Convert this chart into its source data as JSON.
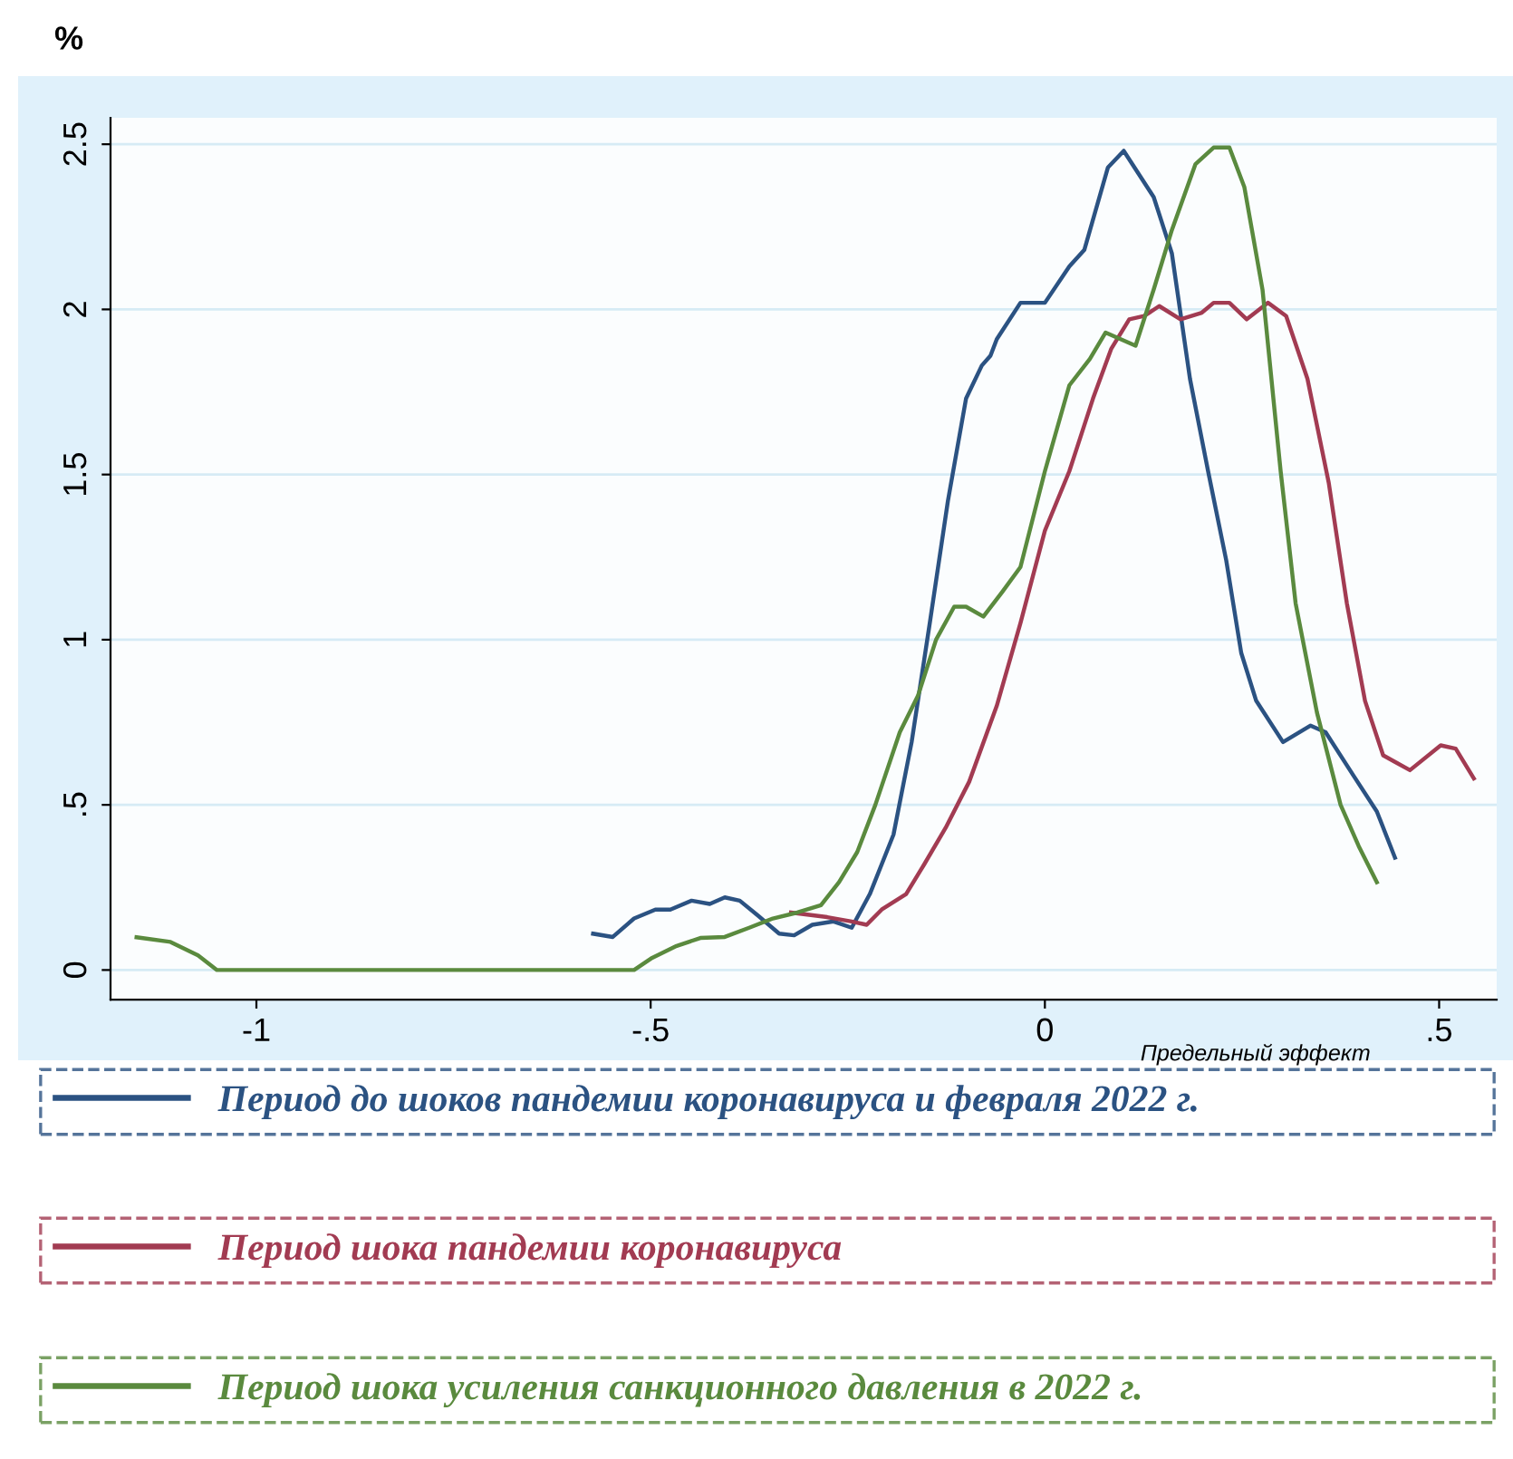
{
  "chart_data": {
    "type": "line",
    "xlabel": "Предельный эффект",
    "ylabel": "%",
    "xlim": [
      -1.185,
      0.573
    ],
    "ylim": [
      -0.09,
      2.58
    ],
    "xticks": [
      -1,
      {
        "value": -0.5,
        "label": "-.5"
      },
      0,
      {
        "value": 0.5,
        "label": ".5"
      }
    ],
    "yticks": [
      0,
      {
        "value": 0.5,
        "label": ".5"
      },
      1,
      1.5,
      2,
      2.5
    ],
    "grid": "y",
    "legend": "bottom",
    "line_style": "solid",
    "marker": "none",
    "series": [
      {
        "name": "Период до шоков пандемии коронавируса и февраля 2022 г.",
        "color": "#2b5282",
        "x": [
          -0.573,
          -0.548,
          -0.521,
          -0.494,
          -0.475,
          -0.448,
          -0.425,
          -0.406,
          -0.387,
          -0.364,
          -0.337,
          -0.318,
          -0.295,
          -0.268,
          -0.245,
          -0.222,
          -0.192,
          -0.169,
          -0.146,
          -0.123,
          -0.1,
          -0.08,
          -0.069,
          -0.061,
          -0.031,
          0,
          0.031,
          0.05,
          0.08,
          0.1,
          0.119,
          0.138,
          0.161,
          0.184,
          0.207,
          0.23,
          0.249,
          0.268,
          0.302,
          0.337,
          0.356,
          0.391,
          0.421,
          0.444
        ],
        "values": [
          0.11,
          0.1,
          0.156,
          0.183,
          0.183,
          0.21,
          0.2,
          0.22,
          0.21,
          0.165,
          0.11,
          0.105,
          0.137,
          0.147,
          0.128,
          0.23,
          0.41,
          0.69,
          1.05,
          1.42,
          1.73,
          1.83,
          1.86,
          1.91,
          2.02,
          2.02,
          2.13,
          2.18,
          2.43,
          2.48,
          2.41,
          2.34,
          2.17,
          1.79,
          1.51,
          1.24,
          0.96,
          0.815,
          0.69,
          0.74,
          0.72,
          0.59,
          0.48,
          0.34
        ]
      },
      {
        "name": "Период шока пандемии коронавируса",
        "color": "#a23b52",
        "x": [
          -0.322,
          -0.276,
          -0.245,
          -0.226,
          -0.207,
          -0.176,
          -0.153,
          -0.126,
          -0.096,
          -0.061,
          -0.031,
          0,
          0.031,
          0.061,
          0.084,
          0.107,
          0.126,
          0.145,
          0.172,
          0.199,
          0.214,
          0.234,
          0.256,
          0.283,
          0.306,
          0.333,
          0.36,
          0.383,
          0.406,
          0.429,
          0.444,
          0.463,
          0.502,
          0.521,
          0.544
        ],
        "values": [
          0.174,
          0.16,
          0.147,
          0.137,
          0.183,
          0.23,
          0.32,
          0.43,
          0.57,
          0.8,
          1.05,
          1.33,
          1.51,
          1.73,
          1.88,
          1.97,
          1.98,
          2.01,
          1.97,
          1.99,
          2.02,
          2.02,
          1.97,
          2.02,
          1.98,
          1.79,
          1.475,
          1.11,
          0.815,
          0.65,
          0.63,
          0.605,
          0.68,
          0.67,
          0.58
        ]
      },
      {
        "name": "Период шока усиления санкционного давления в 2022 г.",
        "color": "#5a8a3e",
        "x": [
          -1.152,
          -1.109,
          -1.074,
          -1.05,
          -0.521,
          -0.498,
          -0.467,
          -0.437,
          -0.406,
          -0.375,
          -0.345,
          -0.314,
          -0.284,
          -0.261,
          -0.238,
          -0.215,
          -0.184,
          -0.161,
          -0.138,
          -0.115,
          -0.1,
          -0.078,
          -0.054,
          -0.031,
          0,
          0.031,
          0.057,
          0.077,
          0.096,
          0.115,
          0.138,
          0.161,
          0.191,
          0.214,
          0.234,
          0.253,
          0.276,
          0.299,
          0.318,
          0.345,
          0.375,
          0.398,
          0.421
        ],
        "values": [
          0.099,
          0.085,
          0.044,
          0,
          0,
          0.037,
          0.073,
          0.097,
          0.1,
          0.128,
          0.156,
          0.174,
          0.196,
          0.266,
          0.357,
          0.5,
          0.72,
          0.83,
          1.0,
          1.1,
          1.1,
          1.07,
          1.145,
          1.22,
          1.51,
          1.77,
          1.85,
          1.93,
          1.91,
          1.89,
          2.06,
          2.24,
          2.44,
          2.49,
          2.49,
          2.37,
          2.06,
          1.51,
          1.11,
          0.78,
          0.5,
          0.375,
          0.266
        ]
      }
    ]
  }
}
